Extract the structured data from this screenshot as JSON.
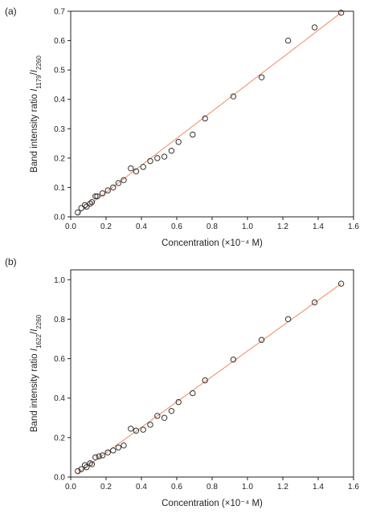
{
  "chart_data": [
    {
      "type": "scatter",
      "panel_label": "(a)",
      "xlabel": "Concentration (×10⁻⁴ M)",
      "ylabel_main": "Band intensity ratio ",
      "ylabel_i1": "I",
      "ylabel_sub1": "1179",
      "ylabel_slash": "/",
      "ylabel_i2": "I",
      "ylabel_sub2": "2260",
      "xlim": [
        0,
        1.6
      ],
      "ylim": [
        0,
        0.7
      ],
      "xticks": [
        "0.0",
        "0.2",
        "0.4",
        "0.6",
        "0.8",
        "1.0",
        "1.2",
        "1.4",
        "1.6"
      ],
      "yticks": [
        "0.0",
        "0.1",
        "0.2",
        "0.3",
        "0.4",
        "0.5",
        "0.6",
        "0.7"
      ],
      "x": [
        0.04,
        0.06,
        0.08,
        0.09,
        0.11,
        0.12,
        0.14,
        0.15,
        0.18,
        0.21,
        0.24,
        0.27,
        0.3,
        0.34,
        0.37,
        0.41,
        0.45,
        0.49,
        0.53,
        0.57,
        0.61,
        0.69,
        0.76,
        0.92,
        1.08,
        1.23,
        1.38,
        1.53
      ],
      "y": [
        0.015,
        0.03,
        0.04,
        0.035,
        0.045,
        0.05,
        0.07,
        0.07,
        0.08,
        0.09,
        0.1,
        0.115,
        0.125,
        0.165,
        0.155,
        0.17,
        0.19,
        0.2,
        0.205,
        0.225,
        0.255,
        0.28,
        0.335,
        0.41,
        0.475,
        0.6,
        0.645,
        0.695
      ],
      "fit_line": {
        "x": [
          0.04,
          1.53
        ],
        "y": [
          0.01,
          0.695
        ]
      },
      "marker": "open-circle",
      "fit_color": "#f08a5d"
    },
    {
      "type": "scatter",
      "panel_label": "(b)",
      "xlabel": "Concentration (×10⁻⁴ M)",
      "ylabel_main": "Band intensity ratio ",
      "ylabel_i1": "I",
      "ylabel_sub1": "1622",
      "ylabel_slash": "/",
      "ylabel_i2": "I",
      "ylabel_sub2": "2260",
      "xlim": [
        0,
        1.6
      ],
      "ylim": [
        0,
        1.05
      ],
      "xticks": [
        "0.0",
        "0.2",
        "0.4",
        "0.6",
        "0.8",
        "1.0",
        "1.2",
        "1.4",
        "1.6"
      ],
      "yticks": [
        "0.0",
        "0.2",
        "0.4",
        "0.6",
        "0.8",
        "1.0"
      ],
      "x": [
        0.04,
        0.06,
        0.08,
        0.09,
        0.11,
        0.12,
        0.14,
        0.16,
        0.18,
        0.21,
        0.24,
        0.27,
        0.3,
        0.34,
        0.37,
        0.41,
        0.45,
        0.49,
        0.53,
        0.57,
        0.61,
        0.69,
        0.76,
        0.92,
        1.08,
        1.23,
        1.38,
        1.53
      ],
      "y": [
        0.03,
        0.04,
        0.06,
        0.05,
        0.07,
        0.065,
        0.1,
        0.105,
        0.11,
        0.125,
        0.135,
        0.15,
        0.16,
        0.245,
        0.235,
        0.24,
        0.265,
        0.31,
        0.3,
        0.335,
        0.38,
        0.425,
        0.49,
        0.595,
        0.695,
        0.8,
        0.885,
        0.98
      ],
      "fit_line": {
        "x": [
          0.04,
          1.53
        ],
        "y": [
          0.02,
          0.98
        ]
      },
      "marker": "open-circle",
      "fit_color": "#f08a5d"
    }
  ]
}
